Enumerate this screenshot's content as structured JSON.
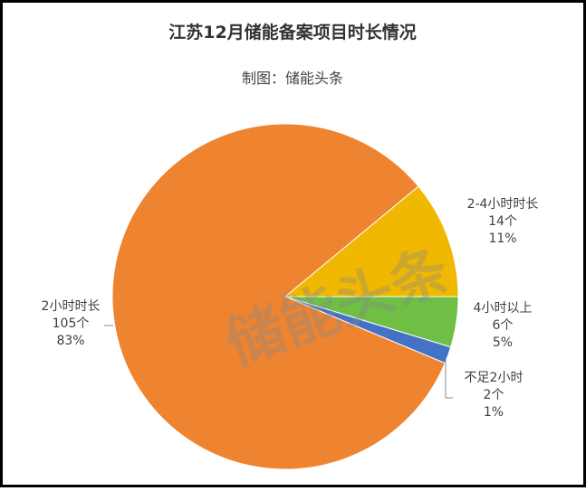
{
  "chart_data": {
    "type": "pie",
    "title": "江苏12月储能备案项目时长情况",
    "subtitle": "制图：储能头条",
    "watermark": "储能头条",
    "categories": [
      "2-4小时时长",
      "4小时以上",
      "不足2小时",
      "2小时时长"
    ],
    "values": [
      14,
      6,
      2,
      105
    ],
    "value_labels": [
      "14个",
      "6个",
      "2个",
      "105个"
    ],
    "percents": [
      11,
      5,
      1,
      83
    ],
    "percent_labels": [
      "11%",
      "5%",
      "1%",
      "83%"
    ],
    "colors": [
      "#f0b800",
      "#6fbf45",
      "#4472c4",
      "#ee8330"
    ]
  }
}
